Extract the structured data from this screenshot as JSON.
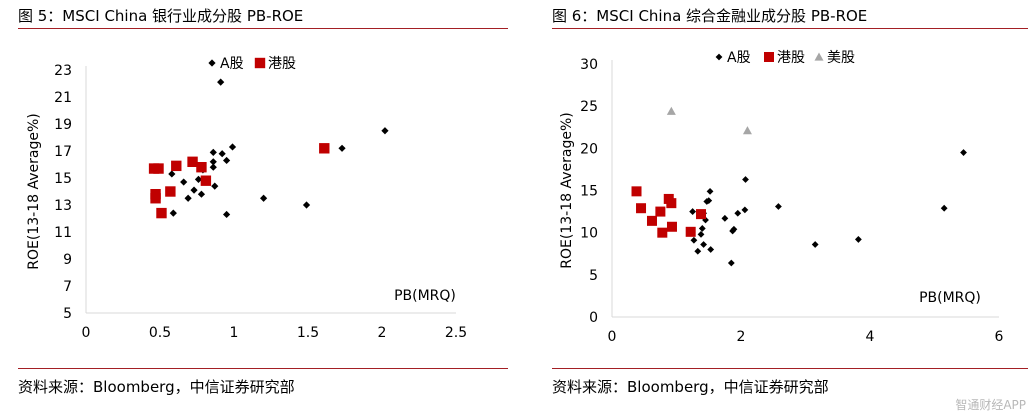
{
  "charts": [
    {
      "title": "图 5：MSCI China 银行业成分股 PB-ROE",
      "source": "资料来源：Bloomberg，中信证券研究部",
      "chart_data": {
        "type": "scatter",
        "title": "MSCI China 银行业成分股 PB-ROE",
        "xlabel": "PB(MRQ)",
        "ylabel": "ROE(13-18 Average%)",
        "xlim": [
          0,
          2.5
        ],
        "ylim": [
          5,
          23
        ],
        "x_ticks": [
          0,
          0.5,
          1,
          1.5,
          2,
          2.5
        ],
        "x_tick_labels": [
          "0",
          "0.5",
          "1",
          "1.5",
          "2",
          "2.5"
        ],
        "y_ticks": [
          5,
          7,
          9,
          11,
          13,
          15,
          17,
          19,
          21,
          23
        ],
        "y_tick_labels": [
          "5",
          "7",
          "9",
          "11",
          "13",
          "15",
          "17",
          "19",
          "21",
          "23"
        ],
        "legend_position": "top",
        "series": [
          {
            "name": "A股",
            "marker": "diamond",
            "color": "#000000",
            "x": [
              0.58,
              0.59,
              0.66,
              0.69,
              0.73,
              0.76,
              0.78,
              0.79,
              0.86,
              0.86,
              0.86,
              0.87,
              0.91,
              0.92,
              0.95,
              0.95,
              0.99,
              1.2,
              1.49,
              1.73,
              2.02
            ],
            "y": [
              15.3,
              12.4,
              14.7,
              13.5,
              14.1,
              14.9,
              13.8,
              15.6,
              16.9,
              16.2,
              15.8,
              14.4,
              22.1,
              16.8,
              12.3,
              16.3,
              17.3,
              13.5,
              13.0,
              17.2,
              18.5
            ]
          },
          {
            "name": "港股",
            "marker": "square",
            "color": "#c00000",
            "x": [
              0.46,
              0.47,
              0.47,
              0.49,
              0.51,
              0.57,
              0.61,
              0.72,
              0.78,
              0.81,
              1.61
            ],
            "y": [
              15.7,
              13.8,
              13.5,
              15.7,
              12.4,
              14.0,
              15.9,
              16.2,
              15.8,
              14.8,
              17.2
            ]
          }
        ]
      }
    },
    {
      "title": "图 6：MSCI China 综合金融业成分股 PB-ROE",
      "source": "资料来源：Bloomberg，中信证券研究部",
      "chart_data": {
        "type": "scatter",
        "title": "MSCI China 综合金融业成分股 PB-ROE",
        "xlabel": "PB(MRQ)",
        "ylabel": "ROE(13-18 Average%)",
        "xlim": [
          0,
          6
        ],
        "ylim": [
          0,
          30
        ],
        "x_ticks": [
          0,
          2,
          4,
          6
        ],
        "x_tick_labels": [
          "0",
          "2",
          "4",
          "6"
        ],
        "y_ticks": [
          0,
          5,
          10,
          15,
          20,
          25,
          30
        ],
        "y_tick_labels": [
          "0",
          "5",
          "10",
          "15",
          "20",
          "25",
          "30"
        ],
        "legend_position": "top",
        "series": [
          {
            "name": "A股",
            "marker": "diamond",
            "color": "#000000",
            "x": [
              1.25,
              1.27,
              1.33,
              1.38,
              1.4,
              1.42,
              1.42,
              1.45,
              1.47,
              1.5,
              1.52,
              1.53,
              1.75,
              1.85,
              1.87,
              1.89,
              1.95,
              2.06,
              2.07,
              2.58,
              3.15,
              3.82,
              5.15,
              5.45
            ],
            "y": [
              12.5,
              9.1,
              7.8,
              9.8,
              10.5,
              12.3,
              8.6,
              11.5,
              13.7,
              13.8,
              14.9,
              8.0,
              11.7,
              6.4,
              10.2,
              10.4,
              12.3,
              12.7,
              16.3,
              13.1,
              8.6,
              9.2,
              12.9,
              19.5
            ]
          },
          {
            "name": "港股",
            "marker": "square",
            "color": "#c00000",
            "x": [
              0.38,
              0.45,
              0.62,
              0.75,
              0.78,
              0.88,
              0.92,
              0.93,
              1.22,
              1.38
            ],
            "y": [
              14.9,
              12.9,
              11.4,
              12.5,
              10.0,
              14.0,
              13.5,
              10.7,
              10.1,
              12.2
            ]
          },
          {
            "name": "美股",
            "marker": "triangle",
            "color": "#a6a6a6",
            "x": [
              0.92,
              2.1
            ],
            "y": [
              24.4,
              22.1
            ]
          }
        ]
      }
    }
  ],
  "watermark": "智通财经APP"
}
